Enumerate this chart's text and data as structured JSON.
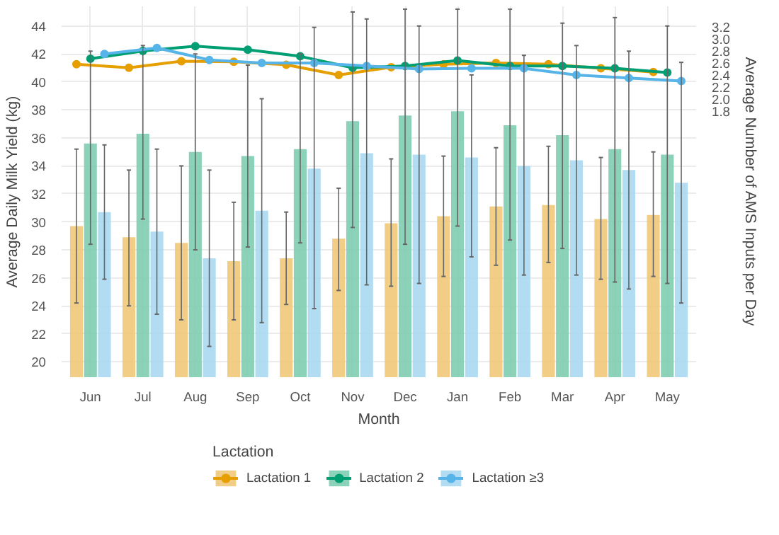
{
  "chart_data": {
    "type": "bar",
    "xlabel": "Month",
    "ylabel": "Average Daily Milk Yield (kg)",
    "y2label": "Average Number of AMS Inputs per Day",
    "legend_title": "Lactation",
    "categories": [
      "Jun",
      "Jul",
      "Aug",
      "Sep",
      "Oct",
      "Nov",
      "Dec",
      "Jan",
      "Feb",
      "Mar",
      "Apr",
      "May"
    ],
    "series": [
      {
        "name": "Lactation 1",
        "color": "#f0c878",
        "values": [
          29.7,
          28.9,
          28.5,
          27.2,
          27.4,
          28.8,
          29.9,
          30.4,
          31.1,
          31.2,
          30.2,
          30.5
        ],
        "errors": [
          [
            24.2,
            35.2
          ],
          [
            24.0,
            33.7
          ],
          [
            23.0,
            34.0
          ],
          [
            23.0,
            31.4
          ],
          [
            24.1,
            30.7
          ],
          [
            25.1,
            32.4
          ],
          [
            25.4,
            34.5
          ],
          [
            26.1,
            34.7
          ],
          [
            26.9,
            35.3
          ],
          [
            27.1,
            35.4
          ],
          [
            25.9,
            34.6
          ],
          [
            26.1,
            35.0
          ]
        ]
      },
      {
        "name": "Lactation 2",
        "color": "#7fcdb1",
        "values": [
          35.6,
          36.3,
          35.0,
          34.7,
          35.2,
          37.2,
          37.6,
          37.9,
          36.9,
          36.2,
          35.2,
          34.8
        ],
        "errors": [
          [
            28.4,
            42.2
          ],
          [
            30.2,
            42.6
          ],
          [
            28.0,
            42.0
          ],
          [
            28.2,
            41.2
          ],
          [
            28.5,
            42.0
          ],
          [
            29.6,
            45.0
          ],
          [
            28.4,
            45.2
          ],
          [
            29.7,
            45.2
          ],
          [
            28.7,
            45.2
          ],
          [
            28.1,
            44.2
          ],
          [
            25.7,
            44.6
          ],
          [
            25.6,
            44.0
          ]
        ]
      },
      {
        "name": "Lactation ≥3",
        "color": "#a8d8f0",
        "values": [
          30.7,
          29.3,
          27.4,
          30.8,
          33.8,
          34.9,
          34.8,
          34.6,
          34.0,
          34.4,
          33.7,
          32.8
        ],
        "errors": [
          [
            25.9,
            35.5
          ],
          [
            23.4,
            35.2
          ],
          [
            21.1,
            33.7
          ],
          [
            22.8,
            38.8
          ],
          [
            23.8,
            43.9
          ],
          [
            25.5,
            44.5
          ],
          [
            25.6,
            44.0
          ],
          [
            27.5,
            40.5
          ],
          [
            26.2,
            41.9
          ],
          [
            26.2,
            42.6
          ],
          [
            25.2,
            42.2
          ],
          [
            24.2,
            41.4
          ]
        ]
      },
      {
        "type": "line",
        "axis": "y2",
        "color": "#e69f00",
        "values": [
          2.58,
          2.52,
          2.63,
          2.62,
          2.57,
          2.4,
          2.53,
          2.58,
          2.6,
          2.58,
          2.51,
          2.45
        ]
      },
      {
        "type": "line",
        "axis": "y2",
        "color": "#009e73",
        "values": [
          2.67,
          2.8,
          2.88,
          2.82,
          2.71,
          2.52,
          2.55,
          2.64,
          2.55,
          2.55,
          2.51,
          2.44
        ]
      },
      {
        "type": "line",
        "axis": "y2",
        "color": "#56b4e9",
        "values": [
          2.75,
          2.85,
          2.65,
          2.6,
          2.6,
          2.55,
          2.5,
          2.51,
          2.51,
          2.4,
          2.35,
          2.3
        ]
      }
    ],
    "ylim": [
      18.9,
      45.4
    ],
    "yticks": [
      20,
      22,
      24,
      26,
      28,
      30,
      32,
      34,
      36,
      38,
      40,
      42,
      44
    ],
    "y2lim": [
      -2.62,
      3.54
    ],
    "y2ticks": [
      1.8,
      {
        "value": 2.0,
        "label": "2.0"
      },
      2.2,
      2.4,
      2.6,
      2.8,
      {
        "value": 3.0,
        "label": "3.0"
      },
      3.2
    ],
    "marker": "circle",
    "grid": true,
    "legend": "bottom"
  }
}
